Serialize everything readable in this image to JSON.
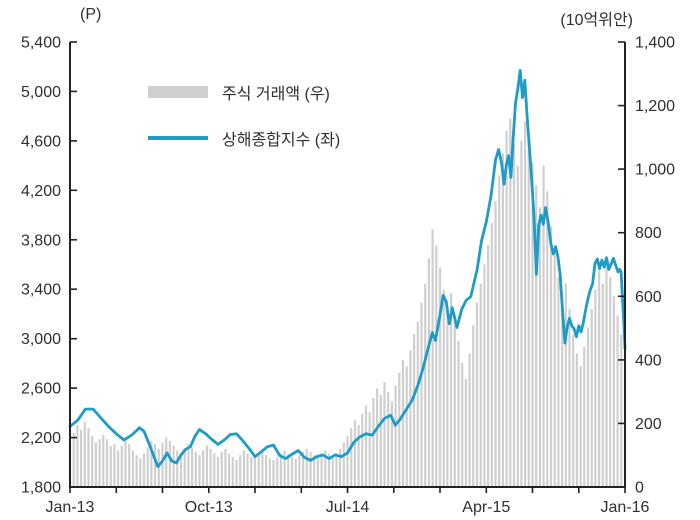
{
  "page": {
    "background": "#ffffff"
  },
  "chart_data": {
    "type": "bar",
    "subtype": "combo-bar-line",
    "title": "",
    "grid": false,
    "legend_position": "top-left-inside",
    "left_axis": {
      "unit": "(P)",
      "min": 1800,
      "max": 5400,
      "step": 400,
      "ticks": [
        {
          "v": 5400,
          "label": "5,400"
        },
        {
          "v": 5000,
          "label": "5,000"
        },
        {
          "v": 4600,
          "label": "4,600"
        },
        {
          "v": 4200,
          "label": "4,200"
        },
        {
          "v": 3800,
          "label": "3,800"
        },
        {
          "v": 3400,
          "label": "3,400"
        },
        {
          "v": 3000,
          "label": "3,000"
        },
        {
          "v": 2600,
          "label": "2,600"
        },
        {
          "v": 2200,
          "label": "2,200"
        },
        {
          "v": 1800,
          "label": "1,800"
        }
      ]
    },
    "right_axis": {
      "unit": "(10억위안)",
      "min": 0,
      "max": 1400,
      "step": 200,
      "ticks": [
        {
          "v": 1400,
          "label": "1,400"
        },
        {
          "v": 1200,
          "label": "1,200"
        },
        {
          "v": 1000,
          "label": "1,000"
        },
        {
          "v": 800,
          "label": "800"
        },
        {
          "v": 600,
          "label": "600"
        },
        {
          "v": 400,
          "label": "400"
        },
        {
          "v": 200,
          "label": "200"
        },
        {
          "v": 0,
          "label": "0"
        }
      ]
    },
    "x_axis": {
      "min_month": 0,
      "max_month": 36,
      "tick_step_months": 3,
      "labels": [
        {
          "m": 0,
          "label": "Jan-13"
        },
        {
          "m": 9,
          "label": "Oct-13"
        },
        {
          "m": 18,
          "label": "Jul-14"
        },
        {
          "m": 27,
          "label": "Apr-15"
        },
        {
          "m": 36,
          "label": "Jan-16"
        }
      ]
    },
    "series": [
      {
        "name": "상해종합지수 (좌)",
        "type": "line",
        "axis": "left",
        "color": "#1e9cc5",
        "points": [
          [
            0,
            2290
          ],
          [
            0.5,
            2340
          ],
          [
            1,
            2430
          ],
          [
            1.5,
            2430
          ],
          [
            2,
            2360
          ],
          [
            2.5,
            2290
          ],
          [
            3,
            2230
          ],
          [
            3.5,
            2180
          ],
          [
            4,
            2220
          ],
          [
            4.5,
            2280
          ],
          [
            4.8,
            2250
          ],
          [
            5.1,
            2160
          ],
          [
            5.4,
            2060
          ],
          [
            5.7,
            1965
          ],
          [
            6,
            2010
          ],
          [
            6.3,
            2075
          ],
          [
            6.6,
            2010
          ],
          [
            6.9,
            1995
          ],
          [
            7.2,
            2060
          ],
          [
            7.5,
            2105
          ],
          [
            7.8,
            2125
          ],
          [
            8.1,
            2210
          ],
          [
            8.4,
            2265
          ],
          [
            8.8,
            2230
          ],
          [
            9.2,
            2185
          ],
          [
            9.6,
            2145
          ],
          [
            10,
            2180
          ],
          [
            10.4,
            2225
          ],
          [
            10.8,
            2230
          ],
          [
            11.2,
            2175
          ],
          [
            11.6,
            2115
          ],
          [
            12,
            2045
          ],
          [
            12.4,
            2085
          ],
          [
            12.8,
            2125
          ],
          [
            13.2,
            2140
          ],
          [
            13.6,
            2055
          ],
          [
            14,
            2030
          ],
          [
            14.4,
            2065
          ],
          [
            14.8,
            2095
          ],
          [
            15.2,
            2040
          ],
          [
            15.6,
            2015
          ],
          [
            16,
            2045
          ],
          [
            16.4,
            2060
          ],
          [
            16.8,
            2030
          ],
          [
            17.2,
            2060
          ],
          [
            17.6,
            2045
          ],
          [
            18,
            2075
          ],
          [
            18.4,
            2160
          ],
          [
            18.8,
            2205
          ],
          [
            19.2,
            2230
          ],
          [
            19.6,
            2220
          ],
          [
            20,
            2290
          ],
          [
            20.4,
            2355
          ],
          [
            20.8,
            2380
          ],
          [
            21.1,
            2300
          ],
          [
            21.4,
            2345
          ],
          [
            21.8,
            2425
          ],
          [
            22.2,
            2505
          ],
          [
            22.6,
            2635
          ],
          [
            22.9,
            2760
          ],
          [
            23.2,
            2910
          ],
          [
            23.5,
            3050
          ],
          [
            23.7,
            2985
          ],
          [
            24,
            3190
          ],
          [
            24.2,
            3350
          ],
          [
            24.4,
            3300
          ],
          [
            24.6,
            3120
          ],
          [
            24.8,
            3250
          ],
          [
            25.1,
            3090
          ],
          [
            25.4,
            3235
          ],
          [
            25.7,
            3310
          ],
          [
            26,
            3340
          ],
          [
            26.4,
            3555
          ],
          [
            26.7,
            3795
          ],
          [
            27,
            3945
          ],
          [
            27.3,
            4150
          ],
          [
            27.6,
            4445
          ],
          [
            27.8,
            4530
          ],
          [
            28,
            4415
          ],
          [
            28.15,
            4250
          ],
          [
            28.3,
            4405
          ],
          [
            28.45,
            4480
          ],
          [
            28.6,
            4305
          ],
          [
            28.75,
            4625
          ],
          [
            28.9,
            4905
          ],
          [
            29.05,
            5025
          ],
          [
            29.2,
            5170
          ],
          [
            29.35,
            4950
          ],
          [
            29.5,
            5090
          ],
          [
            29.65,
            4800
          ],
          [
            29.8,
            4545
          ],
          [
            29.95,
            4285
          ],
          [
            30.1,
            3985
          ],
          [
            30.25,
            3520
          ],
          [
            30.4,
            3915
          ],
          [
            30.55,
            4000
          ],
          [
            30.7,
            3925
          ],
          [
            30.85,
            4060
          ],
          [
            31,
            3955
          ],
          [
            31.2,
            3765
          ],
          [
            31.35,
            3685
          ],
          [
            31.5,
            3745
          ],
          [
            31.65,
            3665
          ],
          [
            31.8,
            3505
          ],
          [
            31.95,
            3215
          ],
          [
            32.1,
            2965
          ],
          [
            32.25,
            3095
          ],
          [
            32.4,
            3165
          ],
          [
            32.55,
            3105
          ],
          [
            32.7,
            3080
          ],
          [
            32.85,
            3015
          ],
          [
            33,
            3105
          ],
          [
            33.15,
            3055
          ],
          [
            33.3,
            3135
          ],
          [
            33.45,
            3235
          ],
          [
            33.6,
            3325
          ],
          [
            33.75,
            3395
          ],
          [
            33.9,
            3445
          ],
          [
            34.05,
            3605
          ],
          [
            34.2,
            3645
          ],
          [
            34.35,
            3565
          ],
          [
            34.5,
            3635
          ],
          [
            34.65,
            3580
          ],
          [
            34.8,
            3655
          ],
          [
            34.95,
            3560
          ],
          [
            35.1,
            3605
          ],
          [
            35.25,
            3650
          ],
          [
            35.4,
            3590
          ],
          [
            35.55,
            3540
          ],
          [
            35.65,
            3560
          ],
          [
            35.75,
            3540
          ],
          [
            35.85,
            3295
          ],
          [
            35.93,
            3120
          ],
          [
            36,
            2920
          ]
        ]
      },
      {
        "name": "주식 거래액 (우)",
        "type": "bar",
        "axis": "right",
        "color": "#cfcfcf",
        "x_start_month": 0,
        "x_step_months": 0.24,
        "values": [
          140,
          170,
          195,
          180,
          205,
          185,
          160,
          140,
          150,
          165,
          150,
          130,
          135,
          115,
          130,
          145,
          135,
          115,
          100,
          90,
          105,
          125,
          145,
          135,
          120,
          140,
          155,
          145,
          130,
          115,
          105,
          120,
          135,
          125,
          110,
          100,
          115,
          130,
          120,
          105,
          95,
          110,
          120,
          105,
          95,
          85,
          100,
          115,
          105,
          95,
          90,
          100,
          110,
          100,
          90,
          85,
          95,
          105,
          115,
          105,
          95,
          90,
          100,
          110,
          120,
          110,
          100,
          95,
          105,
          115,
          105,
          95,
          105,
          120,
          140,
          160,
          185,
          210,
          195,
          230,
          255,
          235,
          280,
          310,
          290,
          330,
          300,
          270,
          320,
          360,
          400,
          380,
          430,
          480,
          520,
          580,
          640,
          720,
          810,
          760,
          690,
          620,
          560,
          610,
          540,
          460,
          390,
          340,
          420,
          510,
          580,
          640,
          700,
          760,
          830,
          900,
          980,
          1050,
          1120,
          1160,
          1080,
          1010,
          1090,
          1150,
          1100,
          1020,
          950,
          880,
          1010,
          930,
          820,
          740,
          660,
          580,
          640,
          560,
          480,
          420,
          380,
          440,
          500,
          560,
          620,
          680,
          640,
          700,
          660,
          600,
          540,
          480,
          420
        ]
      }
    ],
    "style": {
      "axis_color": "#222222",
      "text_color": "#2f2f2f",
      "line_width": 2.8
    }
  }
}
